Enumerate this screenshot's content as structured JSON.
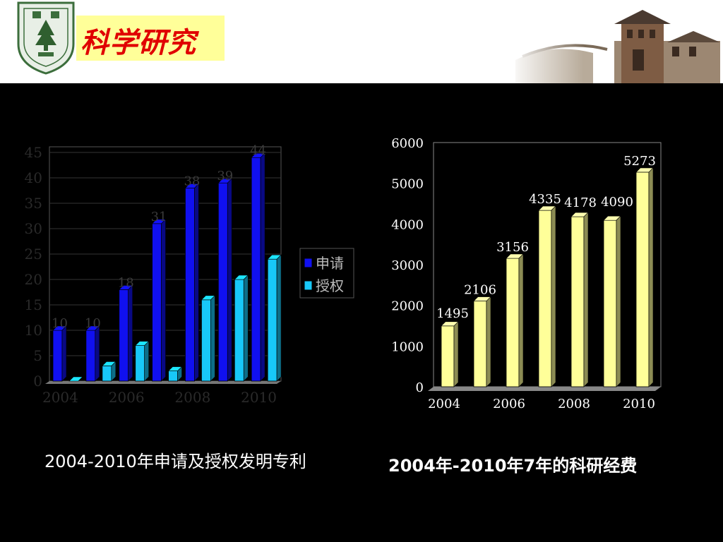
{
  "header": {
    "title": "科学研究",
    "logo_icon": "nanjing-university-seal-icon",
    "scenery_icon": "campus-building-scenery-icon"
  },
  "colors": {
    "background": "#000000",
    "title_box": "#ffff99",
    "title_text": "#e00000",
    "apply_bar": "#1010f0",
    "grant_bar": "#18c8f8",
    "funding_bar": "#ffff99"
  },
  "captions": {
    "patents": "2004-2010年申请及授权发明专利",
    "funding": "2004年-2010年7年的科研经费"
  },
  "chart_data": [
    {
      "type": "bar",
      "style": "3d",
      "categories": [
        "2004",
        "2005",
        "2006",
        "2007",
        "2008",
        "2009",
        "2010"
      ],
      "x_tick_labels": [
        "2004",
        "2006",
        "2008",
        "2010"
      ],
      "ylim": [
        0,
        45
      ],
      "y_ticks": [
        0,
        5,
        10,
        15,
        20,
        25,
        30,
        35,
        40,
        45
      ],
      "grid": true,
      "legend_position": "right",
      "series": [
        {
          "name": "申请",
          "values": [
            10,
            10,
            18,
            31,
            38,
            39,
            44
          ],
          "labels": [
            "10",
            "10",
            "18",
            "31",
            "38",
            "39",
            "44"
          ]
        },
        {
          "name": "授权",
          "values": [
            0,
            3,
            7,
            2,
            16,
            20,
            24
          ]
        }
      ]
    },
    {
      "type": "bar",
      "style": "3d",
      "categories": [
        "2004",
        "2005",
        "2006",
        "2007",
        "2008",
        "2009",
        "2010"
      ],
      "x_tick_labels": [
        "2004",
        "2006",
        "2008",
        "2010"
      ],
      "ylim": [
        0,
        6000
      ],
      "y_ticks": [
        0,
        1000,
        2000,
        3000,
        4000,
        5000,
        6000
      ],
      "grid": false,
      "values": [
        1495,
        2106,
        3156,
        4335,
        4178,
        4090,
        5273
      ],
      "labels": [
        "1495",
        "2106",
        "3156",
        "4335",
        "4178",
        "4090",
        "5273"
      ]
    }
  ]
}
